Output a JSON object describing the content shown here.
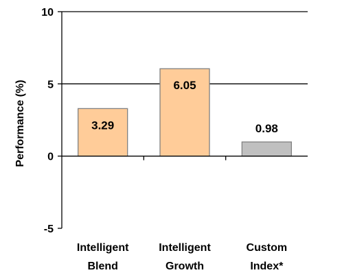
{
  "chart_data": {
    "type": "bar",
    "categories": [
      [
        "Intelligent",
        "Blend"
      ],
      [
        "Intelligent",
        "Growth"
      ],
      [
        "Custom",
        "Index*"
      ]
    ],
    "values": [
      3.29,
      6.05,
      0.98
    ],
    "data_labels": [
      "3.29",
      "6.05",
      "0.98"
    ],
    "bar_colors": [
      "#ffcc99",
      "#ffcc99",
      "#c0c0c0"
    ],
    "bar_stroke": "#808080",
    "ylabel": "Performance (%)",
    "ylim": [
      -5,
      10
    ],
    "yticks": [
      -5,
      0,
      5,
      10
    ],
    "ytick_labels": [
      "-5",
      "0",
      "5",
      "10"
    ],
    "gridlines": [
      5,
      10
    ],
    "grid": true,
    "legend": "none"
  }
}
